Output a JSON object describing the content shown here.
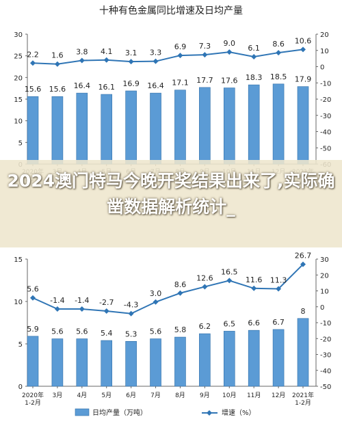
{
  "title": "十种有色金属同比增速及日均产量",
  "overlay_text": "2024澳门特马今晚开奖结果出来了,实际确凿数据解析统计_",
  "colors": {
    "bar": "#5b9bd5",
    "bar_stroke": "#2f6ea8",
    "line": "#2f75b5",
    "axis": "#666666",
    "text": "#222222",
    "grid": "#bfbfbf"
  },
  "legend": {
    "bar_label": "日均产量（万吨）",
    "line_label": "增速（%）"
  },
  "chart_data": [
    {
      "type": "bar+line",
      "categories": [
        "2020年\n1-2月",
        "3月",
        "4月",
        "5月",
        "6月",
        "7月",
        "8月",
        "9月",
        "10月",
        "11月",
        "12月",
        "2021年\n1-2月"
      ],
      "bar_values": [
        15.6,
        15.6,
        16.4,
        16.1,
        16.9,
        16.4,
        17.1,
        17.7,
        17.6,
        18.3,
        18.5,
        17.9
      ],
      "line_values": [
        2.2,
        1.6,
        3.8,
        4.1,
        3.1,
        3.3,
        6.9,
        7.3,
        9.0,
        6.1,
        8.6,
        10.6
      ],
      "left_axis": {
        "min": 0,
        "max": 30,
        "ticks": [
          0,
          5,
          10,
          15,
          20,
          25,
          30
        ]
      },
      "right_axis": {
        "min": -60,
        "max": 20,
        "ticks": [
          -60,
          -50,
          -40,
          -30,
          -20,
          -10,
          0,
          10,
          20
        ]
      }
    },
    {
      "type": "bar+line",
      "categories": [
        "2020年\n1-2月",
        "3月",
        "4月",
        "5月",
        "6月",
        "7月",
        "8月",
        "9月",
        "10月",
        "11月",
        "12月",
        "2021年\n1-2月"
      ],
      "bar_values": [
        5.9,
        5.6,
        5.6,
        5.4,
        5.3,
        5.6,
        5.8,
        6.2,
        6.5,
        6.6,
        6.7,
        8.0
      ],
      "line_values": [
        5.6,
        -1.4,
        -1.4,
        -2.7,
        -4.3,
        3.0,
        8.6,
        12.6,
        16.5,
        11.6,
        11.3,
        26.7
      ],
      "left_axis": {
        "min": 0,
        "max": 15,
        "ticks": [
          0,
          5,
          10,
          15
        ]
      },
      "right_axis": {
        "min": -50,
        "max": 30,
        "ticks": [
          -50,
          -40,
          -30,
          -20,
          -10,
          0,
          10,
          20,
          30
        ]
      }
    }
  ]
}
